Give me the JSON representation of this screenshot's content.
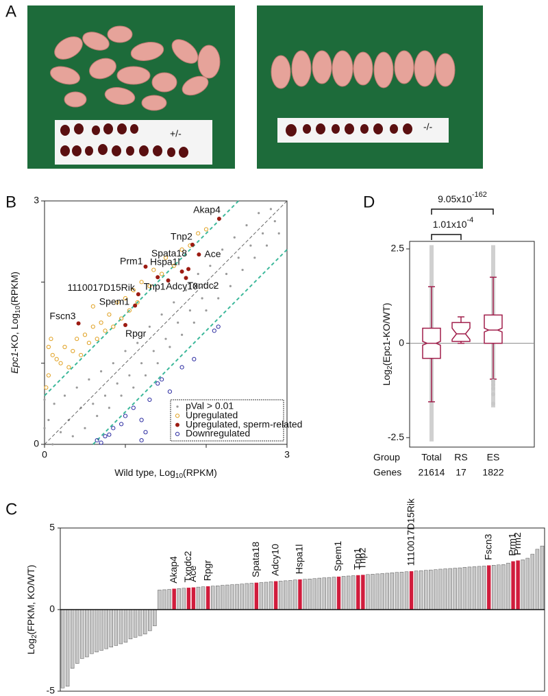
{
  "panel_labels": [
    "A",
    "B",
    "C",
    "D"
  ],
  "panel_a": {
    "labels": [
      "+/-",
      "-/-"
    ]
  },
  "chart_data": [
    {
      "type": "scatter",
      "x_label": {
        "pre": "Wild type, Log",
        "sub": "10",
        "post": "(RPKM)"
      },
      "y_label": {
        "gene": "Epc1",
        "pre": "-KO, Log",
        "sub": "10",
        "post": "(RPKM)"
      },
      "xlim": [
        0,
        3
      ],
      "ylim": [
        0,
        3
      ],
      "xticks": [
        0,
        3
      ],
      "yticks": [
        0,
        3
      ],
      "minor_ticks": [
        1,
        2
      ],
      "diagonal": true,
      "threshold_lines": [
        0.6,
        -0.6
      ],
      "threshold_color": "#3cb89a",
      "legend": "lower right",
      "series": [
        {
          "name": "pVal > 0.01",
          "color": "#9a9a9a",
          "marker": "dot",
          "points": [
            [
              0.05,
              0.3
            ],
            [
              0.1,
              0.0
            ],
            [
              0.12,
              0.5
            ],
            [
              0.2,
              0.15
            ],
            [
              0.25,
              0.6
            ],
            [
              0.3,
              0.3
            ],
            [
              0.35,
              0.1
            ],
            [
              0.4,
              0.7
            ],
            [
              0.45,
              0.45
            ],
            [
              0.5,
              0.2
            ],
            [
              0.55,
              0.8
            ],
            [
              0.6,
              0.5
            ],
            [
              0.65,
              0.35
            ],
            [
              0.7,
              0.9
            ],
            [
              0.75,
              0.6
            ],
            [
              0.8,
              0.45
            ],
            [
              0.85,
              1.0
            ],
            [
              0.9,
              0.75
            ],
            [
              0.95,
              0.6
            ],
            [
              1.0,
              1.15
            ],
            [
              1.05,
              0.85
            ],
            [
              1.1,
              0.7
            ],
            [
              1.15,
              1.25
            ],
            [
              1.2,
              1.0
            ],
            [
              1.25,
              0.85
            ],
            [
              1.3,
              1.45
            ],
            [
              1.35,
              1.15
            ],
            [
              1.4,
              1.0
            ],
            [
              1.45,
              1.6
            ],
            [
              1.5,
              1.3
            ],
            [
              1.55,
              1.2
            ],
            [
              1.6,
              1.75
            ],
            [
              1.65,
              1.5
            ],
            [
              1.7,
              1.35
            ],
            [
              1.75,
              1.9
            ],
            [
              1.8,
              1.65
            ],
            [
              1.85,
              1.5
            ],
            [
              1.9,
              2.1
            ],
            [
              1.95,
              1.8
            ],
            [
              2.0,
              1.65
            ],
            [
              2.05,
              2.2
            ],
            [
              2.1,
              1.95
            ],
            [
              2.15,
              1.8
            ],
            [
              2.2,
              2.4
            ],
            [
              2.25,
              2.1
            ],
            [
              2.3,
              1.95
            ],
            [
              2.35,
              2.55
            ],
            [
              2.4,
              2.3
            ],
            [
              2.45,
              2.15
            ],
            [
              2.5,
              2.7
            ],
            [
              2.55,
              2.45
            ],
            [
              2.6,
              2.3
            ],
            [
              2.65,
              2.85
            ],
            [
              2.7,
              2.6
            ],
            [
              2.75,
              2.45
            ],
            [
              2.8,
              2.9
            ],
            [
              2.85,
              2.75
            ],
            [
              2.9,
              2.6
            ],
            [
              0.0,
              0.2
            ],
            [
              0.0,
              0.55
            ]
          ]
        },
        {
          "name": "Upregulated",
          "color": "#e0a020",
          "marker": "open",
          "points": [
            [
              0.05,
              0.85
            ],
            [
              0.1,
              1.1
            ],
            [
              0.05,
              1.2
            ],
            [
              0.15,
              1.05
            ],
            [
              0.2,
              1.0
            ],
            [
              0.25,
              1.2
            ],
            [
              0.3,
              0.95
            ],
            [
              0.35,
              1.15
            ],
            [
              0.4,
              1.3
            ],
            [
              0.45,
              1.1
            ],
            [
              0.5,
              1.35
            ],
            [
              0.55,
              1.25
            ],
            [
              0.6,
              1.45
            ],
            [
              0.65,
              1.3
            ],
            [
              0.7,
              1.5
            ],
            [
              0.75,
              1.4
            ],
            [
              0.8,
              1.6
            ],
            [
              0.85,
              1.45
            ],
            [
              0.9,
              1.75
            ],
            [
              0.95,
              1.55
            ],
            [
              1.0,
              1.8
            ],
            [
              1.05,
              1.65
            ],
            [
              1.1,
              1.9
            ],
            [
              1.15,
              1.75
            ],
            [
              1.2,
              2.0
            ],
            [
              1.3,
              1.95
            ],
            [
              1.35,
              2.15
            ],
            [
              1.45,
              2.1
            ],
            [
              1.5,
              2.3
            ],
            [
              1.6,
              2.2
            ],
            [
              1.7,
              2.4
            ],
            [
              1.8,
              2.45
            ],
            [
              0.02,
              0.7
            ],
            [
              0.08,
              1.3
            ],
            [
              0.6,
              1.7
            ],
            [
              1.9,
              2.6
            ],
            [
              2.0,
              2.65
            ]
          ]
        },
        {
          "name": "Upregulated, sperm-related",
          "color": "#9c1b12",
          "marker": "filled",
          "points": [
            [
              2.16,
              2.78
            ],
            [
              1.83,
              2.46
            ],
            [
              1.91,
              2.34
            ],
            [
              1.78,
              2.16
            ],
            [
              1.25,
              2.19
            ],
            [
              1.7,
              2.13
            ],
            [
              1.75,
              2.05
            ],
            [
              1.16,
              1.85
            ],
            [
              1.53,
              2.02
            ],
            [
              1.4,
              2.06
            ],
            [
              1.12,
              1.71
            ],
            [
              0.42,
              1.49
            ],
            [
              1.0,
              1.47
            ]
          ],
          "labels": [
            "Akap4",
            "Tnp2",
            "Ace",
            "Spata18",
            "Prm1",
            "Hspa1l",
            "Txndc2",
            "1110017D15Rik",
            "Tnp1",
            "Adcy10",
            "Spem1",
            "Fscn3",
            "Rpgr"
          ]
        },
        {
          "name": "Downregulated",
          "color": "#2a2aa0",
          "marker": "open",
          "points": [
            [
              0.65,
              0.05
            ],
            [
              0.7,
              0.02
            ],
            [
              0.75,
              0.1
            ],
            [
              0.85,
              0.2
            ],
            [
              0.95,
              0.25
            ],
            [
              1.0,
              0.35
            ],
            [
              1.1,
              0.45
            ],
            [
              1.2,
              0.3
            ],
            [
              1.25,
              0.15
            ],
            [
              1.3,
              0.55
            ],
            [
              1.4,
              0.75
            ],
            [
              1.45,
              0.8
            ],
            [
              1.55,
              0.65
            ],
            [
              1.7,
              0.95
            ],
            [
              1.85,
              1.05
            ],
            [
              2.1,
              1.4
            ],
            [
              2.15,
              1.45
            ],
            [
              1.2,
              0.05
            ],
            [
              0.8,
              0.12
            ],
            [
              1.6,
              0.4
            ]
          ]
        }
      ]
    },
    {
      "type": "box",
      "y_label": {
        "pre": "Log",
        "sub": "2",
        "post": "(Epc1-KO/WT)"
      },
      "ylim": [
        -2.75,
        2.7
      ],
      "yticks": [
        2.5,
        0,
        -2.5
      ],
      "zero_line": true,
      "color": "#a01d4a",
      "row_labels": [
        "Group",
        "Genes"
      ],
      "categories": [
        "Total",
        "RS",
        "ES"
      ],
      "genes": [
        21614,
        17,
        1822
      ],
      "stats": [
        {
          "whisker_low": -1.55,
          "q1": -0.4,
          "notch_low": -0.05,
          "median": 0,
          "notch_high": 0.05,
          "q3": 0.4,
          "whisker_high": 1.5
        },
        {
          "whisker_low": 0,
          "q1": 0.05,
          "notch_low": 0.1,
          "median": 0.25,
          "notch_high": 0.4,
          "q3": 0.55,
          "whisker_high": 0.7
        },
        {
          "whisker_low": -0.95,
          "q1": 0.0,
          "notch_low": 0.3,
          "median": 0.35,
          "notch_high": 0.4,
          "q3": 0.75,
          "whisker_high": 1.75
        }
      ],
      "spread": [
        [
          -2.6,
          2.6
        ],
        null,
        [
          -1.7,
          2.6
        ]
      ],
      "outliers": [
        [],
        [],
        [
          -1.0,
          -1.1,
          -1.2,
          -1.35,
          -1.6
        ]
      ],
      "comparisons": [
        {
          "text": "1.01x10",
          "exp": "-4"
        },
        {
          "text": "9.05x10",
          "exp": "-162"
        }
      ]
    },
    {
      "type": "bar",
      "y_label": {
        "pre": "Log",
        "sub": "2",
        "post": "(FPKM, KO/WT)"
      },
      "ylim": [
        -5,
        5
      ],
      "yticks": [
        5,
        0,
        -5
      ],
      "color": "#c8c8c8",
      "highlight_color": "#d01c3c",
      "categories": [
        null,
        null,
        null,
        null,
        null,
        null,
        null,
        null,
        null,
        null,
        null,
        null,
        null,
        null,
        null,
        null,
        null,
        null,
        null,
        null,
        null,
        null,
        null,
        "Akap4",
        null,
        null,
        "Txndc2",
        "Ace",
        null,
        null,
        "Rpgr",
        null,
        null,
        null,
        null,
        null,
        null,
        null,
        null,
        null,
        "Spata18",
        null,
        null,
        null,
        "Adcy10",
        null,
        null,
        null,
        null,
        "Hspa1l",
        null,
        null,
        null,
        null,
        null,
        null,
        null,
        "Spem1",
        null,
        null,
        null,
        "Tnp1",
        "Tnp2",
        null,
        null,
        null,
        null,
        null,
        null,
        null,
        null,
        null,
        "1110017D15Rik",
        null,
        null,
        null,
        null,
        null,
        null,
        null,
        null,
        null,
        null,
        null,
        null,
        null,
        null,
        null,
        "Fscn3",
        null,
        null,
        null,
        null,
        "Prm1",
        "Prm2",
        null,
        null,
        null,
        null,
        null
      ],
      "values": [
        -4.8,
        -4.7,
        -3.6,
        -3.3,
        -3.0,
        -2.9,
        -2.7,
        -2.6,
        -2.5,
        -2.4,
        -2.3,
        -2.2,
        -2.1,
        -2.0,
        -1.8,
        -1.7,
        -1.6,
        -1.5,
        -1.3,
        -1.0,
        1.2,
        1.22,
        1.24,
        1.27,
        1.29,
        1.31,
        1.33,
        1.35,
        1.38,
        1.4,
        1.42,
        1.44,
        1.46,
        1.49,
        1.51,
        1.53,
        1.55,
        1.57,
        1.6,
        1.62,
        1.64,
        1.66,
        1.68,
        1.71,
        1.73,
        1.75,
        1.77,
        1.79,
        1.82,
        1.84,
        1.86,
        1.88,
        1.9,
        1.93,
        1.95,
        1.97,
        1.99,
        2.01,
        2.04,
        2.06,
        2.08,
        2.1,
        2.12,
        2.15,
        2.17,
        2.19,
        2.21,
        2.23,
        2.26,
        2.28,
        2.3,
        2.32,
        2.34,
        2.37,
        2.39,
        2.41,
        2.43,
        2.45,
        2.48,
        2.5,
        2.52,
        2.54,
        2.56,
        2.59,
        2.61,
        2.63,
        2.65,
        2.67,
        2.7,
        2.72,
        2.74,
        2.76,
        2.85,
        2.95,
        3.0,
        3.05,
        3.15,
        3.4,
        3.7,
        3.9
      ]
    }
  ]
}
